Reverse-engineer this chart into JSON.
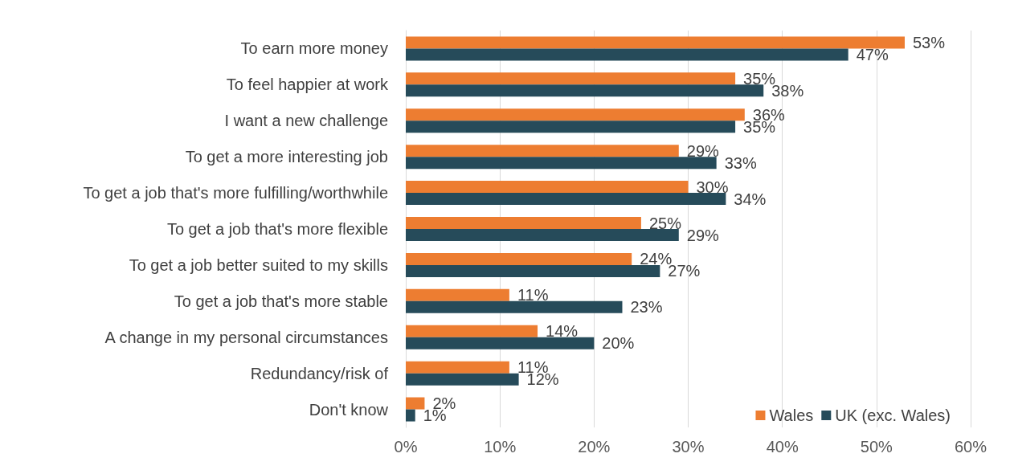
{
  "chart_data": {
    "type": "bar",
    "orientation": "horizontal",
    "categories": [
      "To earn more money",
      "To feel happier at work",
      "I want a new challenge",
      "To get a more interesting job",
      "To get a job that's more fulfilling/worthwhile",
      "To get a job that's more flexible",
      "To get a job better suited to my skills",
      "To get a job that's more stable",
      "A change in my personal circumstances",
      "Redundancy/risk of",
      "Don't know"
    ],
    "series": [
      {
        "name": "Wales",
        "color": "#ed7d31",
        "values": [
          53,
          35,
          36,
          29,
          30,
          25,
          24,
          11,
          14,
          11,
          2
        ],
        "value_labels": [
          "53%",
          "35%",
          "36%",
          "29%",
          "30%",
          "25%",
          "24%",
          "11%",
          "14%",
          "11%",
          "2%"
        ]
      },
      {
        "name": "UK (exc. Wales)",
        "color": "#264b5a",
        "values": [
          47,
          38,
          35,
          33,
          34,
          29,
          27,
          23,
          20,
          12,
          1
        ],
        "value_labels": [
          "47%",
          "38%",
          "35%",
          "33%",
          "34%",
          "29%",
          "27%",
          "23%",
          "20%",
          "12%",
          "1%"
        ]
      }
    ],
    "xlim": [
      0,
      60
    ],
    "xticks": [
      {
        "value": 0,
        "label": "0%"
      },
      {
        "value": 10,
        "label": "10%"
      },
      {
        "value": 20,
        "label": "20%"
      },
      {
        "value": 30,
        "label": "30%"
      },
      {
        "value": 40,
        "label": "40%"
      },
      {
        "value": 50,
        "label": "50%"
      },
      {
        "value": 60,
        "label": "60%"
      }
    ],
    "grid": "x",
    "legend": "bottom right"
  }
}
